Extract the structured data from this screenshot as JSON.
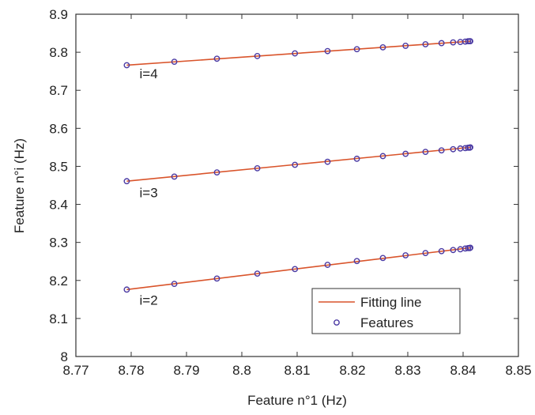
{
  "chart_data": {
    "type": "scatter",
    "xlabel": "Feature n°1 (Hz)",
    "ylabel": "Feature n°i (Hz)",
    "xlim": [
      8.77,
      8.85
    ],
    "ylim": [
      8.0,
      8.9
    ],
    "xticks": [
      "8.77",
      "8.78",
      "8.79",
      "8.8",
      "8.81",
      "8.82",
      "8.83",
      "8.84",
      "8.85"
    ],
    "yticks": [
      "8",
      "8.1",
      "8.2",
      "8.3",
      "8.4",
      "8.5",
      "8.6",
      "8.7",
      "8.8",
      "8.9"
    ],
    "grid": false,
    "legend": {
      "position": "bottom-right",
      "entries": [
        {
          "label": "Fitting line",
          "kind": "line",
          "color": "#d9542b"
        },
        {
          "label": "Features",
          "kind": "marker",
          "color": "#4b3aa3"
        }
      ]
    },
    "colors": {
      "fit": "#d9542b",
      "marker": "#4b3aa3"
    },
    "series": [
      {
        "label": "i=4",
        "label_at": [
          8.7815,
          8.732
        ],
        "x": [
          8.7792,
          8.7878,
          8.7955,
          8.8028,
          8.8096,
          8.8155,
          8.8208,
          8.8255,
          8.8296,
          8.8332,
          8.8361,
          8.8382,
          8.8395,
          8.8404,
          8.8409,
          8.8412,
          8.8413
        ],
        "y": [
          8.766,
          8.775,
          8.783,
          8.79,
          8.797,
          8.803,
          8.808,
          8.813,
          8.817,
          8.821,
          8.824,
          8.826,
          8.827,
          8.828,
          8.829,
          8.829,
          8.829
        ],
        "fit": {
          "x": [
            8.7792,
            8.8413
          ],
          "y": [
            8.766,
            8.829
          ]
        }
      },
      {
        "label": "i=3",
        "label_at": [
          8.7815,
          8.419
        ],
        "x": [
          8.7792,
          8.7878,
          8.7955,
          8.8028,
          8.8096,
          8.8155,
          8.8208,
          8.8255,
          8.8296,
          8.8332,
          8.8361,
          8.8382,
          8.8395,
          8.8404,
          8.8409,
          8.8412,
          8.8413
        ],
        "y": [
          8.461,
          8.473,
          8.484,
          8.495,
          8.504,
          8.512,
          8.52,
          8.527,
          8.533,
          8.538,
          8.542,
          8.545,
          8.547,
          8.548,
          8.549,
          8.549,
          8.55
        ],
        "fit": {
          "x": [
            8.7792,
            8.8413
          ],
          "y": [
            8.461,
            8.55
          ]
        }
      },
      {
        "label": "i=2",
        "label_at": [
          8.7815,
          8.136
        ],
        "x": [
          8.7792,
          8.7878,
          8.7955,
          8.8028,
          8.8096,
          8.8155,
          8.8208,
          8.8255,
          8.8296,
          8.8332,
          8.8361,
          8.8382,
          8.8395,
          8.8404,
          8.8409,
          8.8412,
          8.8413
        ],
        "y": [
          8.176,
          8.191,
          8.205,
          8.218,
          8.23,
          8.241,
          8.251,
          8.259,
          8.266,
          8.272,
          8.277,
          8.28,
          8.282,
          8.284,
          8.285,
          8.285,
          8.286
        ],
        "fit": {
          "x": [
            8.7792,
            8.8413
          ],
          "y": [
            8.176,
            8.286
          ]
        }
      }
    ]
  }
}
